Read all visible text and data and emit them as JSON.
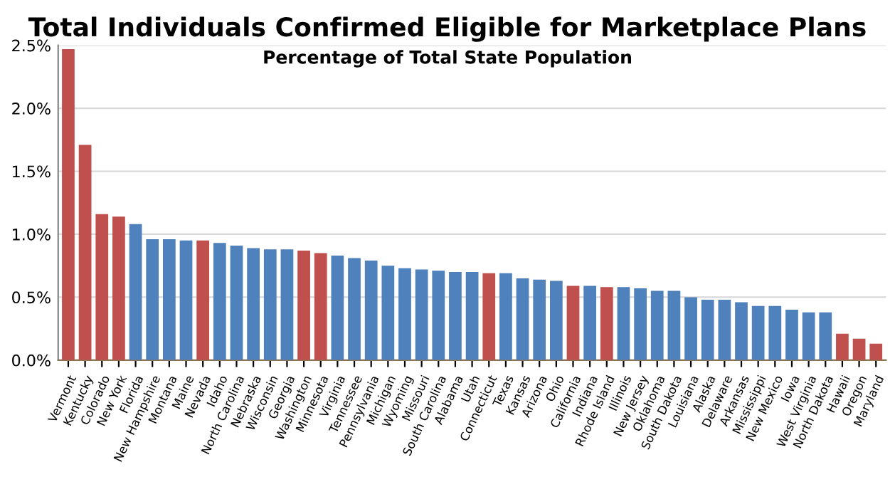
{
  "chart_data": {
    "type": "bar",
    "title": "Total Individuals Confirmed Eligible for Marketplace Plans",
    "subtitle": "Percentage of Total State Population",
    "categories": [
      "Vermont",
      "Kentucky",
      "Colorado",
      "New York",
      "Florida",
      "New Hampshire",
      "Montana",
      "Maine",
      "Nevada",
      "Idaho",
      "North Carolina",
      "Nebraska",
      "Wisconsin",
      "Georgia",
      "Washington",
      "Minnesota",
      "Virginia",
      "Tennessee",
      "Pennsylvania",
      "Michigan",
      "Wyoming",
      "Missouri",
      "South Carolina",
      "Alabama",
      "Utah",
      "Connecticut",
      "Texas",
      "Kansas",
      "Arizona",
      "Ohio",
      "California",
      "Indiana",
      "Rhode Island",
      "Illinois",
      "New Jersey",
      "Oklahoma",
      "South Dakota",
      "Louisiana",
      "Alaska",
      "Delaware",
      "Arkansas",
      "Mississippi",
      "New Mexico",
      "Iowa",
      "West Virginia",
      "North Dakota",
      "Hawaii",
      "Oregon",
      "Maryland"
    ],
    "values": [
      2.47,
      1.71,
      1.16,
      1.14,
      1.08,
      0.96,
      0.96,
      0.95,
      0.95,
      0.93,
      0.91,
      0.89,
      0.88,
      0.88,
      0.87,
      0.85,
      0.83,
      0.81,
      0.79,
      0.75,
      0.73,
      0.72,
      0.71,
      0.7,
      0.7,
      0.69,
      0.69,
      0.65,
      0.64,
      0.63,
      0.59,
      0.59,
      0.58,
      0.58,
      0.57,
      0.55,
      0.55,
      0.5,
      0.48,
      0.48,
      0.46,
      0.43,
      0.43,
      0.4,
      0.38,
      0.38,
      0.21,
      0.17,
      0.13
    ],
    "colors": [
      "#c0504d",
      "#c0504d",
      "#c0504d",
      "#c0504d",
      "#4f81bd",
      "#4f81bd",
      "#4f81bd",
      "#4f81bd",
      "#c0504d",
      "#4f81bd",
      "#4f81bd",
      "#4f81bd",
      "#4f81bd",
      "#4f81bd",
      "#c0504d",
      "#c0504d",
      "#4f81bd",
      "#4f81bd",
      "#4f81bd",
      "#4f81bd",
      "#4f81bd",
      "#4f81bd",
      "#4f81bd",
      "#4f81bd",
      "#4f81bd",
      "#c0504d",
      "#4f81bd",
      "#4f81bd",
      "#4f81bd",
      "#4f81bd",
      "#c0504d",
      "#4f81bd",
      "#c0504d",
      "#4f81bd",
      "#4f81bd",
      "#4f81bd",
      "#4f81bd",
      "#4f81bd",
      "#4f81bd",
      "#4f81bd",
      "#4f81bd",
      "#4f81bd",
      "#4f81bd",
      "#4f81bd",
      "#4f81bd",
      "#4f81bd",
      "#c0504d",
      "#c0504d",
      "#c0504d"
    ],
    "ylim": [
      0,
      2.5
    ],
    "yticks": [
      {
        "value": 0,
        "label": "0.0%"
      },
      {
        "value": 0.5,
        "label": "0.5%"
      },
      {
        "value": 1.0,
        "label": "1.0%"
      },
      {
        "value": 1.5,
        "label": "1.5%"
      },
      {
        "value": 2.0,
        "label": "2.0%"
      },
      {
        "value": 2.5,
        "label": "2.5%"
      }
    ],
    "grid": "y",
    "legend": false
  }
}
